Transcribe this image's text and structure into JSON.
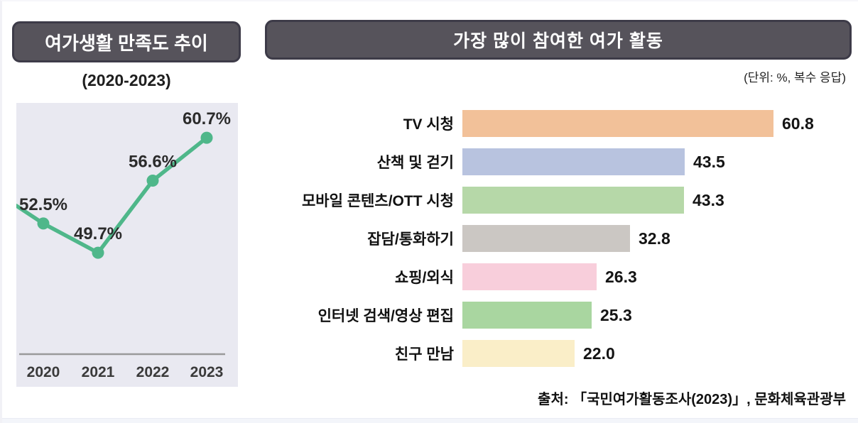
{
  "footer": {
    "source": "출처: 「국민여가활동조사(2023)」, 문화체육관광부"
  },
  "chart_data": [
    {
      "type": "line",
      "title": "여가생활 만족도 추이",
      "subtitle": "(2020-2023)",
      "x": [
        "2020",
        "2021",
        "2022",
        "2023"
      ],
      "values": [
        52.5,
        49.7,
        56.6,
        60.7
      ],
      "point_labels": [
        "52.5%",
        "49.7%",
        "56.6%",
        "60.7%"
      ],
      "unit": "%",
      "ylim": [
        40,
        62
      ],
      "edge_entry_value": 54.2,
      "grid": false,
      "legend": "none",
      "line_color": "#4fb78a",
      "plot_bg": "#e9e9f1",
      "axis_color": "#9a9a9a"
    },
    {
      "type": "bar",
      "orientation": "horizontal",
      "title": "가장 많이 참여한 여가 활동",
      "unit_note": "(단위: %, 복수 응답)",
      "categories": [
        "TV 시청",
        "산책 및 걷기",
        "모바일 콘텐츠/OTT 시청",
        "잡담/통화하기",
        "쇼핑/외식",
        "인터넷 검색/영상 편집",
        "친구 만남"
      ],
      "values": [
        60.8,
        43.5,
        43.3,
        32.8,
        26.3,
        25.3,
        22.0
      ],
      "value_labels": [
        "60.8",
        "43.5",
        "43.3",
        "32.8",
        "26.3",
        "25.3",
        "22.0"
      ],
      "bar_colors": [
        "#f2c199",
        "#b8c3df",
        "#b6d8a8",
        "#cbc7c3",
        "#f8cedb",
        "#a9d6a0",
        "#faeec8"
      ],
      "xlim": [
        0,
        65
      ],
      "grid": false,
      "legend": "none"
    }
  ]
}
